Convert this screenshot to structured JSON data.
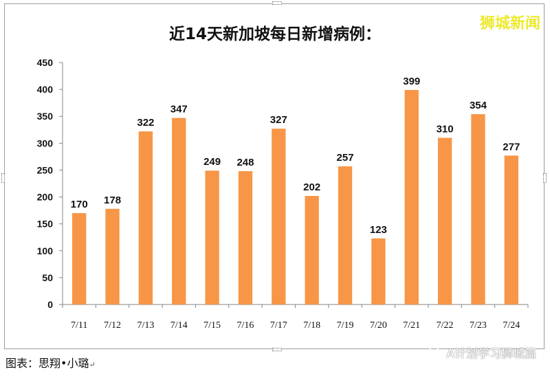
{
  "title": "近14天新加坡每日新增病例：",
  "watermark_top": "狮城新闻",
  "caption": "图表：思翔•小璐",
  "caption_mark": "↵",
  "source_watermark": "A计划学习狮城篇",
  "colors": {
    "bar": "#f79646",
    "axis": "#868686",
    "grid": "#d9d9d9",
    "watermark": "#f4f000"
  },
  "icons": {
    "source": "wechat-icon"
  },
  "chart_data": {
    "type": "bar",
    "title": "近14天新加坡每日新增病例：",
    "xlabel": "",
    "ylabel": "",
    "categories": [
      "7/11",
      "7/12",
      "7/13",
      "7/14",
      "7/15",
      "7/16",
      "7/17",
      "7/18",
      "7/19",
      "7/20",
      "7/21",
      "7/22",
      "7/23",
      "7/24"
    ],
    "values": [
      170,
      178,
      322,
      347,
      249,
      248,
      327,
      202,
      257,
      123,
      399,
      310,
      354,
      277
    ],
    "ylim": [
      0,
      450
    ],
    "yticks": [
      0,
      50,
      100,
      150,
      200,
      250,
      300,
      350,
      400,
      450
    ],
    "data_labels": true,
    "grid": false,
    "legend": "none"
  }
}
